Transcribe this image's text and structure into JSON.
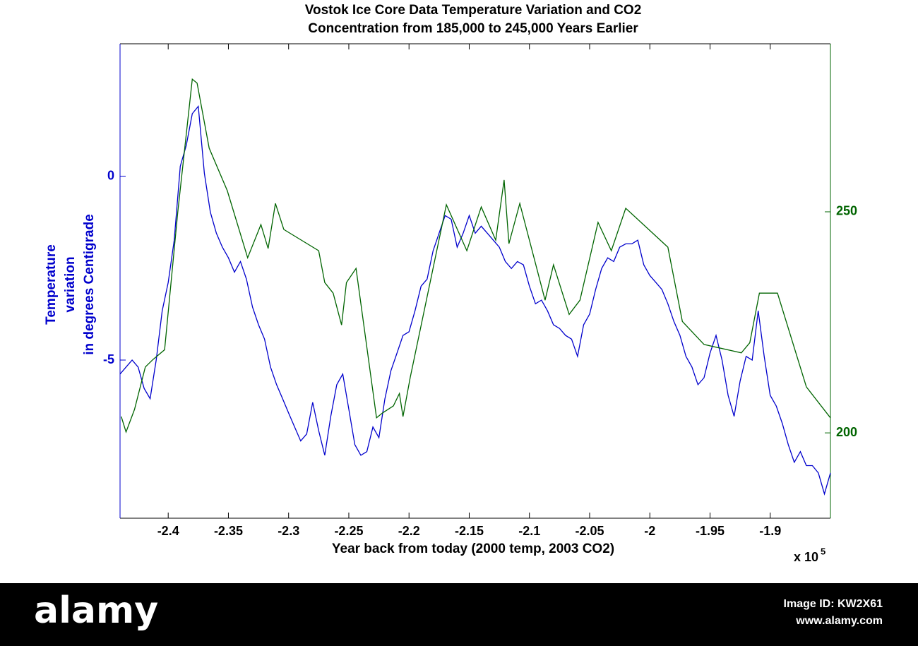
{
  "chart_data": {
    "type": "line",
    "title": [
      "Vostok Ice Core Data Temperature Variation and CO2",
      "Concentration from 185,000 to 245,000 Years Earlier"
    ],
    "ylabel": [
      "Temperature",
      "variation",
      "in degrees Centigrade"
    ],
    "xlabel": "Year back from today (2000 temp, 2003 CO2)",
    "x_multiplier": {
      "base": "x 10",
      "exponent": "5"
    },
    "xlim": [
      -2.44,
      -1.85
    ],
    "xticks": [
      -2.4,
      -2.35,
      -2.3,
      -2.25,
      -2.2,
      -2.15,
      -2.1,
      -2.05,
      -2,
      -1.95,
      -1.9
    ],
    "ylim": [
      -9.3,
      3.6
    ],
    "yticks": [
      -5,
      0
    ],
    "y_color": "#0000cc",
    "y2lim": [
      180.7,
      288
    ],
    "y2ticks": [
      200,
      250
    ],
    "y2_color": "#006400",
    "series": [
      {
        "color": "#0000cc",
        "x": [
          -2.44,
          -2.435,
          -2.43,
          -2.425,
          -2.42,
          -2.415,
          -2.41,
          -2.405,
          -2.4,
          -2.395,
          -2.39,
          -2.385,
          -2.38,
          -2.375,
          -2.37,
          -2.365,
          -2.36,
          -2.355,
          -2.35,
          -2.345,
          -2.34,
          -2.335,
          -2.33,
          -2.325,
          -2.32,
          -2.315,
          -2.31,
          -2.305,
          -2.3,
          -2.295,
          -2.29,
          -2.285,
          -2.28,
          -2.275,
          -2.27,
          -2.265,
          -2.26,
          -2.255,
          -2.25,
          -2.245,
          -2.24,
          -2.235,
          -2.23,
          -2.225,
          -2.22,
          -2.215,
          -2.21,
          -2.205,
          -2.2,
          -2.195,
          -2.19,
          -2.185,
          -2.18,
          -2.175,
          -2.17,
          -2.165,
          -2.16,
          -2.155,
          -2.15,
          -2.145,
          -2.14,
          -2.135,
          -2.13,
          -2.125,
          -2.12,
          -2.115,
          -2.11,
          -2.105,
          -2.1,
          -2.095,
          -2.09,
          -2.085,
          -2.08,
          -2.075,
          -2.07,
          -2.065,
          -2.06,
          -2.055,
          -2.05,
          -2.045,
          -2.04,
          -2.035,
          -2.03,
          -2.025,
          -2.02,
          -2.015,
          -2.01,
          -2.005,
          -2.0,
          -1.995,
          -1.99,
          -1.985,
          -1.98,
          -1.975,
          -1.97,
          -1.965,
          -1.96,
          -1.955,
          -1.95,
          -1.945,
          -1.94,
          -1.935,
          -1.93,
          -1.925,
          -1.92,
          -1.915,
          -1.91,
          -1.905,
          -1.9,
          -1.895,
          -1.89,
          -1.885,
          -1.88,
          -1.875,
          -1.87,
          -1.865,
          -1.86,
          -1.855,
          -1.85
        ],
        "values": [
          -5.38,
          -5.19,
          -5.0,
          -5.19,
          -5.77,
          -6.05,
          -5.0,
          -3.66,
          -2.89,
          -1.74,
          0.27,
          0.84,
          1.7,
          1.9,
          0.08,
          -0.98,
          -1.55,
          -1.93,
          -2.22,
          -2.61,
          -2.32,
          -2.8,
          -3.56,
          -4.04,
          -4.43,
          -5.19,
          -5.67,
          -6.05,
          -6.44,
          -6.82,
          -7.2,
          -7.01,
          -6.15,
          -6.92,
          -7.59,
          -6.53,
          -5.67,
          -5.38,
          -6.34,
          -7.3,
          -7.59,
          -7.49,
          -6.82,
          -7.11,
          -6.05,
          -5.29,
          -4.81,
          -4.33,
          -4.23,
          -3.66,
          -2.99,
          -2.8,
          -2.03,
          -1.55,
          -1.07,
          -1.17,
          -1.93,
          -1.55,
          -1.07,
          -1.55,
          -1.36,
          -1.55,
          -1.74,
          -1.93,
          -2.32,
          -2.51,
          -2.32,
          -2.41,
          -2.99,
          -3.47,
          -3.37,
          -3.66,
          -4.04,
          -4.14,
          -4.33,
          -4.43,
          -4.9,
          -4.04,
          -3.75,
          -3.08,
          -2.51,
          -2.22,
          -2.32,
          -1.93,
          -1.84,
          -1.84,
          -1.74,
          -2.41,
          -2.7,
          -2.89,
          -3.08,
          -3.47,
          -3.95,
          -4.33,
          -4.9,
          -5.19,
          -5.67,
          -5.48,
          -4.81,
          -4.33,
          -5.0,
          -5.96,
          -6.53,
          -5.57,
          -4.9,
          -5.0,
          -3.66,
          -4.9,
          -5.96,
          -6.25,
          -6.72,
          -7.3,
          -7.78,
          -7.49,
          -7.87,
          -7.87,
          -8.07,
          -8.64,
          -8.07
        ]
      },
      {
        "color": "#006400",
        "axis": "y2",
        "x": [
          -2.439,
          -2.435,
          -2.428,
          -2.419,
          -2.413,
          -2.403,
          -2.392,
          -2.38,
          -2.376,
          -2.366,
          -2.351,
          -2.334,
          -2.323,
          -2.317,
          -2.311,
          -2.304,
          -2.275,
          -2.27,
          -2.263,
          -2.256,
          -2.252,
          -2.244,
          -2.227,
          -2.222,
          -2.213,
          -2.208,
          -2.205,
          -2.199,
          -2.169,
          -2.152,
          -2.14,
          -2.128,
          -2.121,
          -2.117,
          -2.108,
          -2.087,
          -2.08,
          -2.067,
          -2.058,
          -2.043,
          -2.032,
          -2.02,
          -1.985,
          -1.973,
          -1.955,
          -1.924,
          -1.917,
          -1.909,
          -1.894,
          -1.87,
          -1.85
        ],
        "values": [
          203.7,
          200.2,
          205.3,
          214.9,
          216.5,
          218.8,
          250,
          280,
          279.1,
          264.4,
          254.8,
          239.6,
          247.1,
          241.7,
          251.9,
          246,
          241.2,
          234,
          231.6,
          224.4,
          234,
          237.2,
          203.4,
          204.5,
          206.1,
          208.9,
          203.7,
          212.5,
          251.6,
          241.2,
          251.1,
          243.6,
          257.2,
          242.8,
          251.9,
          230,
          238,
          226.8,
          230,
          247.6,
          241.2,
          250.8,
          242,
          225.2,
          220,
          218.1,
          220.4,
          231.6,
          231.6,
          210.4,
          203.4
        ]
      }
    ]
  },
  "watermark": {
    "brand": "alamy",
    "image_id": "Image ID: KW2X61",
    "url": "www.alamy.com"
  }
}
